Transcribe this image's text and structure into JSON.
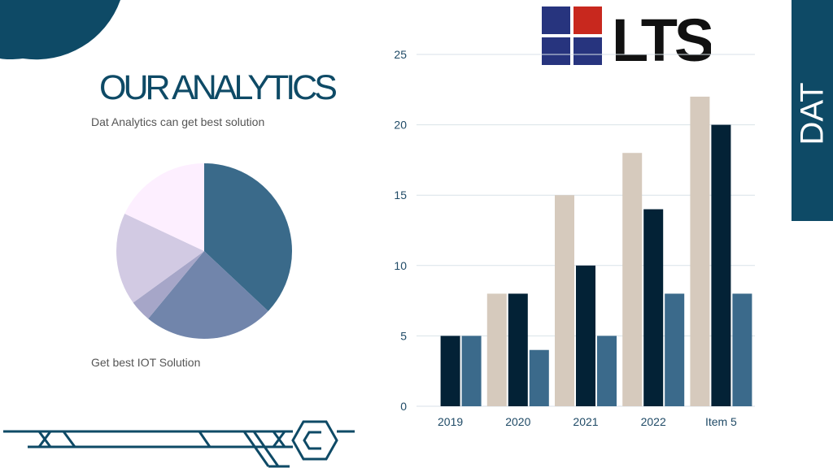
{
  "slide": {
    "title": "OUR ANALYTICS",
    "subtitle": "Dat Analytics can get best solution",
    "caption": "Get best IOT Solution",
    "side_tab_text": "DAT",
    "logo_text": "LTS"
  },
  "colors": {
    "brand": "#0e4a66",
    "logo_blue": "#27347e",
    "logo_red": "#c8281e"
  },
  "chart_data": [
    {
      "type": "pie",
      "values": [
        37,
        24,
        4,
        17,
        18
      ],
      "colors": [
        "#3a6a8a",
        "#7185ab",
        "#a6a6c8",
        "#d2cae3",
        "#fdefff"
      ]
    },
    {
      "type": "bar",
      "categories": [
        "2019",
        "2020",
        "2021",
        "2022",
        "Item 5"
      ],
      "series": [
        {
          "values": [
            0,
            8,
            15,
            18,
            22
          ],
          "color": "#d6cabd"
        },
        {
          "values": [
            5,
            8,
            10,
            14,
            20
          ],
          "color": "#032236"
        },
        {
          "values": [
            5,
            4,
            5,
            8,
            8
          ],
          "color": "#3b6a8b"
        }
      ],
      "ylim": [
        0,
        25
      ],
      "yticks": [
        0,
        5,
        10,
        15,
        20,
        25
      ],
      "grid": true
    }
  ]
}
